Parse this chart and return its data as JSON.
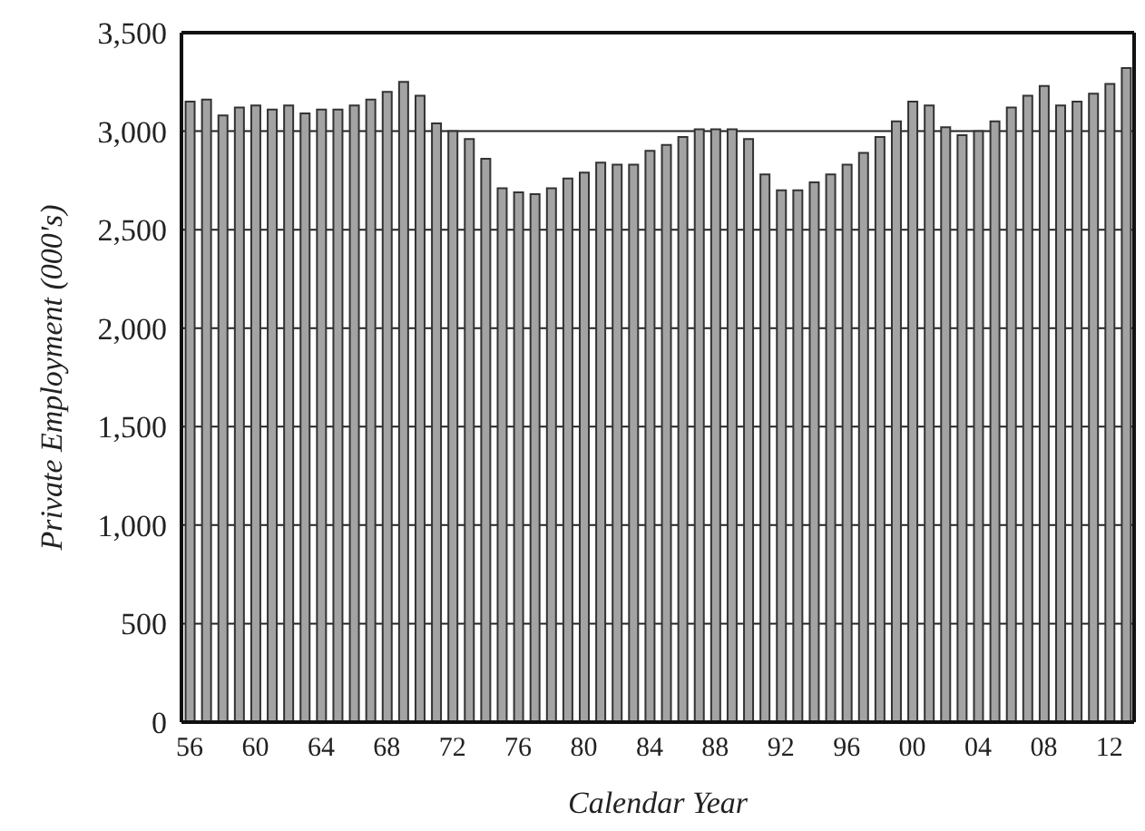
{
  "chart_data": {
    "type": "bar",
    "xlabel": "Calendar Year",
    "ylabel": "Private Employment (000's)",
    "categories": [
      "56",
      null,
      null,
      null,
      "60",
      null,
      null,
      null,
      "64",
      null,
      null,
      null,
      "68",
      null,
      null,
      null,
      "72",
      null,
      null,
      null,
      "76",
      null,
      null,
      null,
      "80",
      null,
      null,
      null,
      "84",
      null,
      null,
      null,
      "88",
      null,
      null,
      null,
      "92",
      null,
      null,
      null,
      "96",
      null,
      null,
      null,
      "00",
      null,
      null,
      null,
      "04",
      null,
      null,
      null,
      "08",
      null,
      null,
      null,
      "12",
      null
    ],
    "values": [
      3150,
      3160,
      3080,
      3120,
      3130,
      3110,
      3130,
      3090,
      3110,
      3110,
      3130,
      3160,
      3200,
      3250,
      3180,
      3040,
      3000,
      2960,
      2860,
      2710,
      2690,
      2680,
      2710,
      2760,
      2790,
      2840,
      2830,
      2830,
      2900,
      2930,
      2970,
      3010,
      3010,
      3010,
      2960,
      2780,
      2700,
      2700,
      2740,
      2780,
      2830,
      2890,
      2970,
      3050,
      3150,
      3130,
      3020,
      2980,
      3000,
      3050,
      3120,
      3180,
      3230,
      3130,
      3150,
      3190,
      3240,
      3320
    ],
    "color": "#a3a3a3",
    "ylim": [
      0,
      3500
    ],
    "yticks": [
      0,
      {
        "value": 500,
        "label": "500"
      },
      {
        "value": 1000,
        "label": "1,000"
      },
      {
        "value": 1500,
        "label": "1,500"
      },
      {
        "value": 2000,
        "label": "2,000"
      },
      {
        "value": 2500,
        "label": "2,500"
      },
      {
        "value": 3000,
        "label": "3,000"
      },
      {
        "value": 3500,
        "label": "3,500"
      }
    ],
    "grid": "y"
  }
}
